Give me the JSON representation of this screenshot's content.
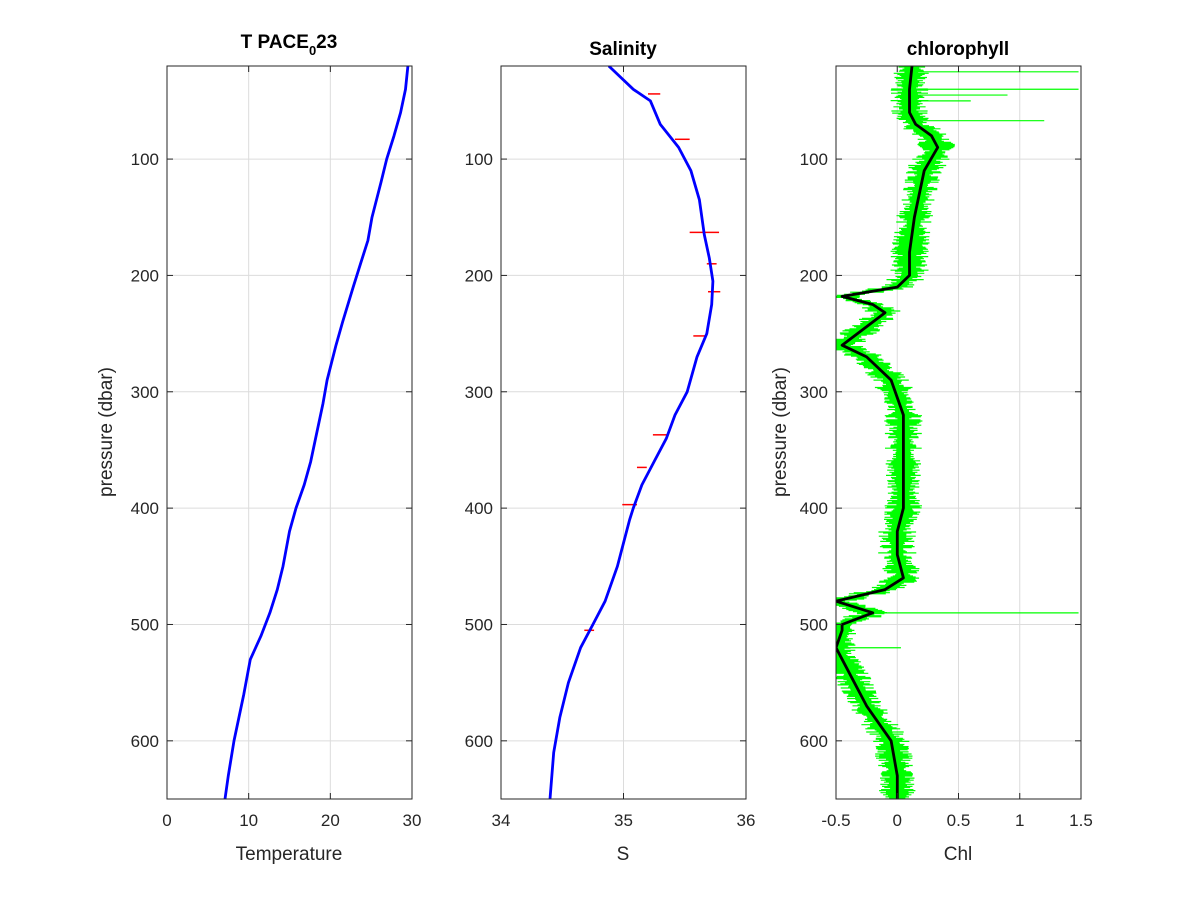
{
  "chart_data": [
    {
      "type": "line",
      "title": "T PACE",
      "title_sub": "0",
      "title_tail": "23",
      "xlabel": "Temperature",
      "ylabel": "pressure (dbar)",
      "xlim": [
        0,
        30
      ],
      "ylim": [
        650,
        20
      ],
      "y_reversed": true,
      "xticks": [
        0,
        10,
        20,
        30
      ],
      "yticks": [
        100,
        200,
        300,
        400,
        500,
        600
      ],
      "grid": true,
      "series": [
        {
          "color": "#0000ff",
          "x": [
            29.5,
            29.2,
            28.6,
            27.8,
            26.9,
            26.2,
            25.1,
            24.6,
            23.7,
            22.8,
            21.5,
            20.7,
            19.6,
            19.1,
            18.2,
            17.6,
            16.8,
            15.8,
            15.0,
            14.2,
            13.5,
            12.6,
            11.5,
            10.2,
            9.4,
            8.8,
            8.2,
            7.5,
            7.1
          ],
          "y": [
            20,
            40,
            60,
            80,
            100,
            120,
            150,
            170,
            190,
            210,
            240,
            260,
            290,
            310,
            340,
            360,
            380,
            400,
            420,
            450,
            470,
            490,
            510,
            530,
            560,
            580,
            600,
            630,
            650
          ]
        }
      ]
    },
    {
      "type": "line",
      "title": "Salinity",
      "xlabel": "S",
      "ylabel": "",
      "xlim": [
        34,
        36
      ],
      "ylim": [
        650,
        20
      ],
      "y_reversed": true,
      "xticks": [
        34,
        35,
        36
      ],
      "yticks": [
        100,
        200,
        300,
        400,
        500,
        600
      ],
      "grid": true,
      "series": [
        {
          "color": "#0000ff",
          "x": [
            34.88,
            34.98,
            35.08,
            35.22,
            35.3,
            35.45,
            35.55,
            35.62,
            35.66,
            35.7,
            35.73,
            35.72,
            35.68,
            35.6,
            35.52,
            35.42,
            35.35,
            35.25,
            35.15,
            35.08,
            35.05,
            35.0,
            34.95,
            34.85,
            34.75,
            34.65,
            34.55,
            34.48,
            34.43,
            34.4
          ],
          "y": [
            20,
            30,
            40,
            50,
            70,
            90,
            110,
            135,
            165,
            185,
            205,
            225,
            250,
            270,
            300,
            320,
            340,
            360,
            380,
            400,
            410,
            430,
            450,
            480,
            500,
            520,
            550,
            580,
            610,
            650
          ]
        }
      ],
      "spikes": [
        {
          "x": 35.25,
          "y": 44,
          "w": 0.05
        },
        {
          "x": 35.48,
          "y": 83,
          "w": 0.06
        },
        {
          "x": 35.66,
          "y": 163,
          "w": 0.12
        },
        {
          "x": 35.72,
          "y": 190,
          "w": 0.04
        },
        {
          "x": 35.74,
          "y": 214,
          "w": 0.05
        },
        {
          "x": 35.62,
          "y": 252,
          "w": 0.05
        },
        {
          "x": 35.3,
          "y": 337,
          "w": 0.06
        },
        {
          "x": 35.15,
          "y": 365,
          "w": 0.04
        },
        {
          "x": 35.05,
          "y": 397,
          "w": 0.06
        },
        {
          "x": 34.72,
          "y": 505,
          "w": 0.04
        }
      ]
    },
    {
      "type": "line",
      "title": "chlorophyll",
      "xlabel": "Chl",
      "ylabel": "pressure (dbar)",
      "xlim": [
        -0.5,
        1.5
      ],
      "ylim": [
        650,
        20
      ],
      "y_reversed": true,
      "xticks": [
        -0.5,
        0,
        0.5,
        1,
        1.5
      ],
      "yticks": [
        100,
        200,
        300,
        400,
        500,
        600
      ],
      "grid": true,
      "series": [
        {
          "name": "",
          "color": "#000000",
          "x": [
            0.12,
            0.1,
            0.1,
            0.15,
            0.28,
            0.33,
            0.22,
            0.14,
            0.1,
            0.1,
            0.0,
            -0.45,
            -0.2,
            -0.1,
            -0.2,
            -0.45,
            -0.25,
            -0.05,
            0.05,
            0.05,
            0.05,
            0.0,
            0.0,
            0.05,
            -0.1,
            -0.5,
            -0.2,
            -0.45,
            -0.45,
            -0.5,
            -0.25,
            -0.05,
            0.0,
            0.0
          ],
          "y": [
            20,
            40,
            60,
            70,
            80,
            90,
            110,
            150,
            180,
            200,
            210,
            218,
            225,
            232,
            240,
            260,
            270,
            290,
            320,
            360,
            400,
            420,
            440,
            460,
            470,
            480,
            490,
            500,
            505,
            520,
            570,
            600,
            630,
            650
          ]
        }
      ],
      "noise_color": "#00ff00",
      "noise_halfwidth": 0.12,
      "noise_spikes": [
        {
          "y": 25,
          "x": 1.48
        },
        {
          "y": 40,
          "x": 1.48
        },
        {
          "y": 45,
          "x": 0.9
        },
        {
          "y": 50,
          "x": 0.6
        },
        {
          "y": 67,
          "x": 1.2
        },
        {
          "y": 490,
          "x": 1.48
        },
        {
          "y": 520,
          "x": 0.03
        }
      ]
    }
  ]
}
